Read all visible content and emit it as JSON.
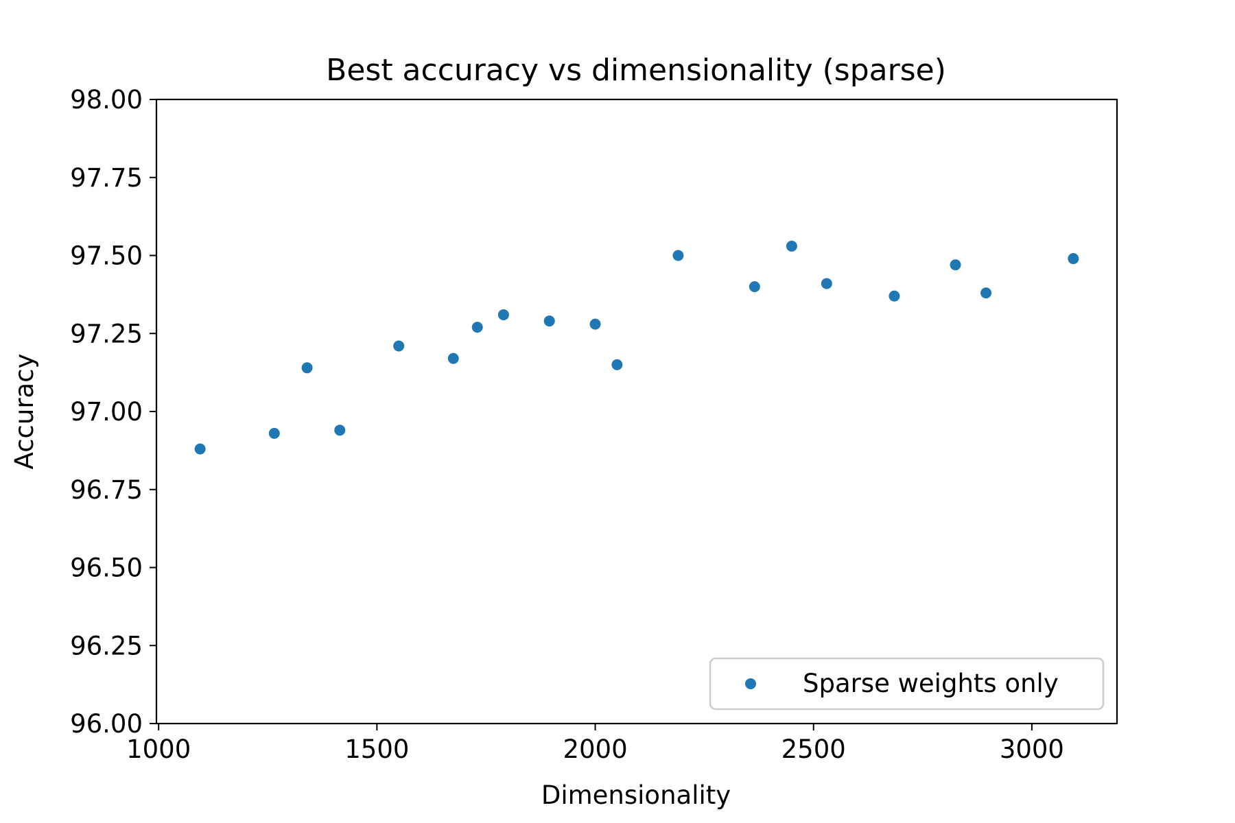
{
  "chart_data": {
    "type": "scatter",
    "title": "Best accuracy vs dimensionality  (sparse)",
    "xlabel": "Dimensionality",
    "ylabel": "Accuracy",
    "xlim": [
      995,
      3195
    ],
    "ylim": [
      96.0,
      98.0
    ],
    "xticks": [
      1000,
      1500,
      2000,
      2500,
      3000
    ],
    "xtick_labels": [
      "1000",
      "1500",
      "2000",
      "2500",
      "3000"
    ],
    "yticks": [
      96.0,
      96.25,
      96.5,
      96.75,
      97.0,
      97.25,
      97.5,
      97.75,
      98.0
    ],
    "ytick_labels": [
      "96.00",
      "96.25",
      "96.50",
      "96.75",
      "97.00",
      "97.25",
      "97.50",
      "97.75",
      "98.00"
    ],
    "grid": false,
    "legend_position": "lower right",
    "series": [
      {
        "name": "Sparse weights only",
        "color": "#1f77b4",
        "points": [
          {
            "x": 1095,
            "y": 96.88
          },
          {
            "x": 1265,
            "y": 96.93
          },
          {
            "x": 1340,
            "y": 97.14
          },
          {
            "x": 1415,
            "y": 96.94
          },
          {
            "x": 1550,
            "y": 97.21
          },
          {
            "x": 1675,
            "y": 97.17
          },
          {
            "x": 1730,
            "y": 97.27
          },
          {
            "x": 1790,
            "y": 97.31
          },
          {
            "x": 1895,
            "y": 97.29
          },
          {
            "x": 2000,
            "y": 97.28
          },
          {
            "x": 2050,
            "y": 97.15
          },
          {
            "x": 2190,
            "y": 97.5
          },
          {
            "x": 2365,
            "y": 97.4
          },
          {
            "x": 2450,
            "y": 97.53
          },
          {
            "x": 2530,
            "y": 97.41
          },
          {
            "x": 2685,
            "y": 97.37
          },
          {
            "x": 2825,
            "y": 97.47
          },
          {
            "x": 2895,
            "y": 97.38
          },
          {
            "x": 3095,
            "y": 97.49
          }
        ]
      }
    ]
  }
}
